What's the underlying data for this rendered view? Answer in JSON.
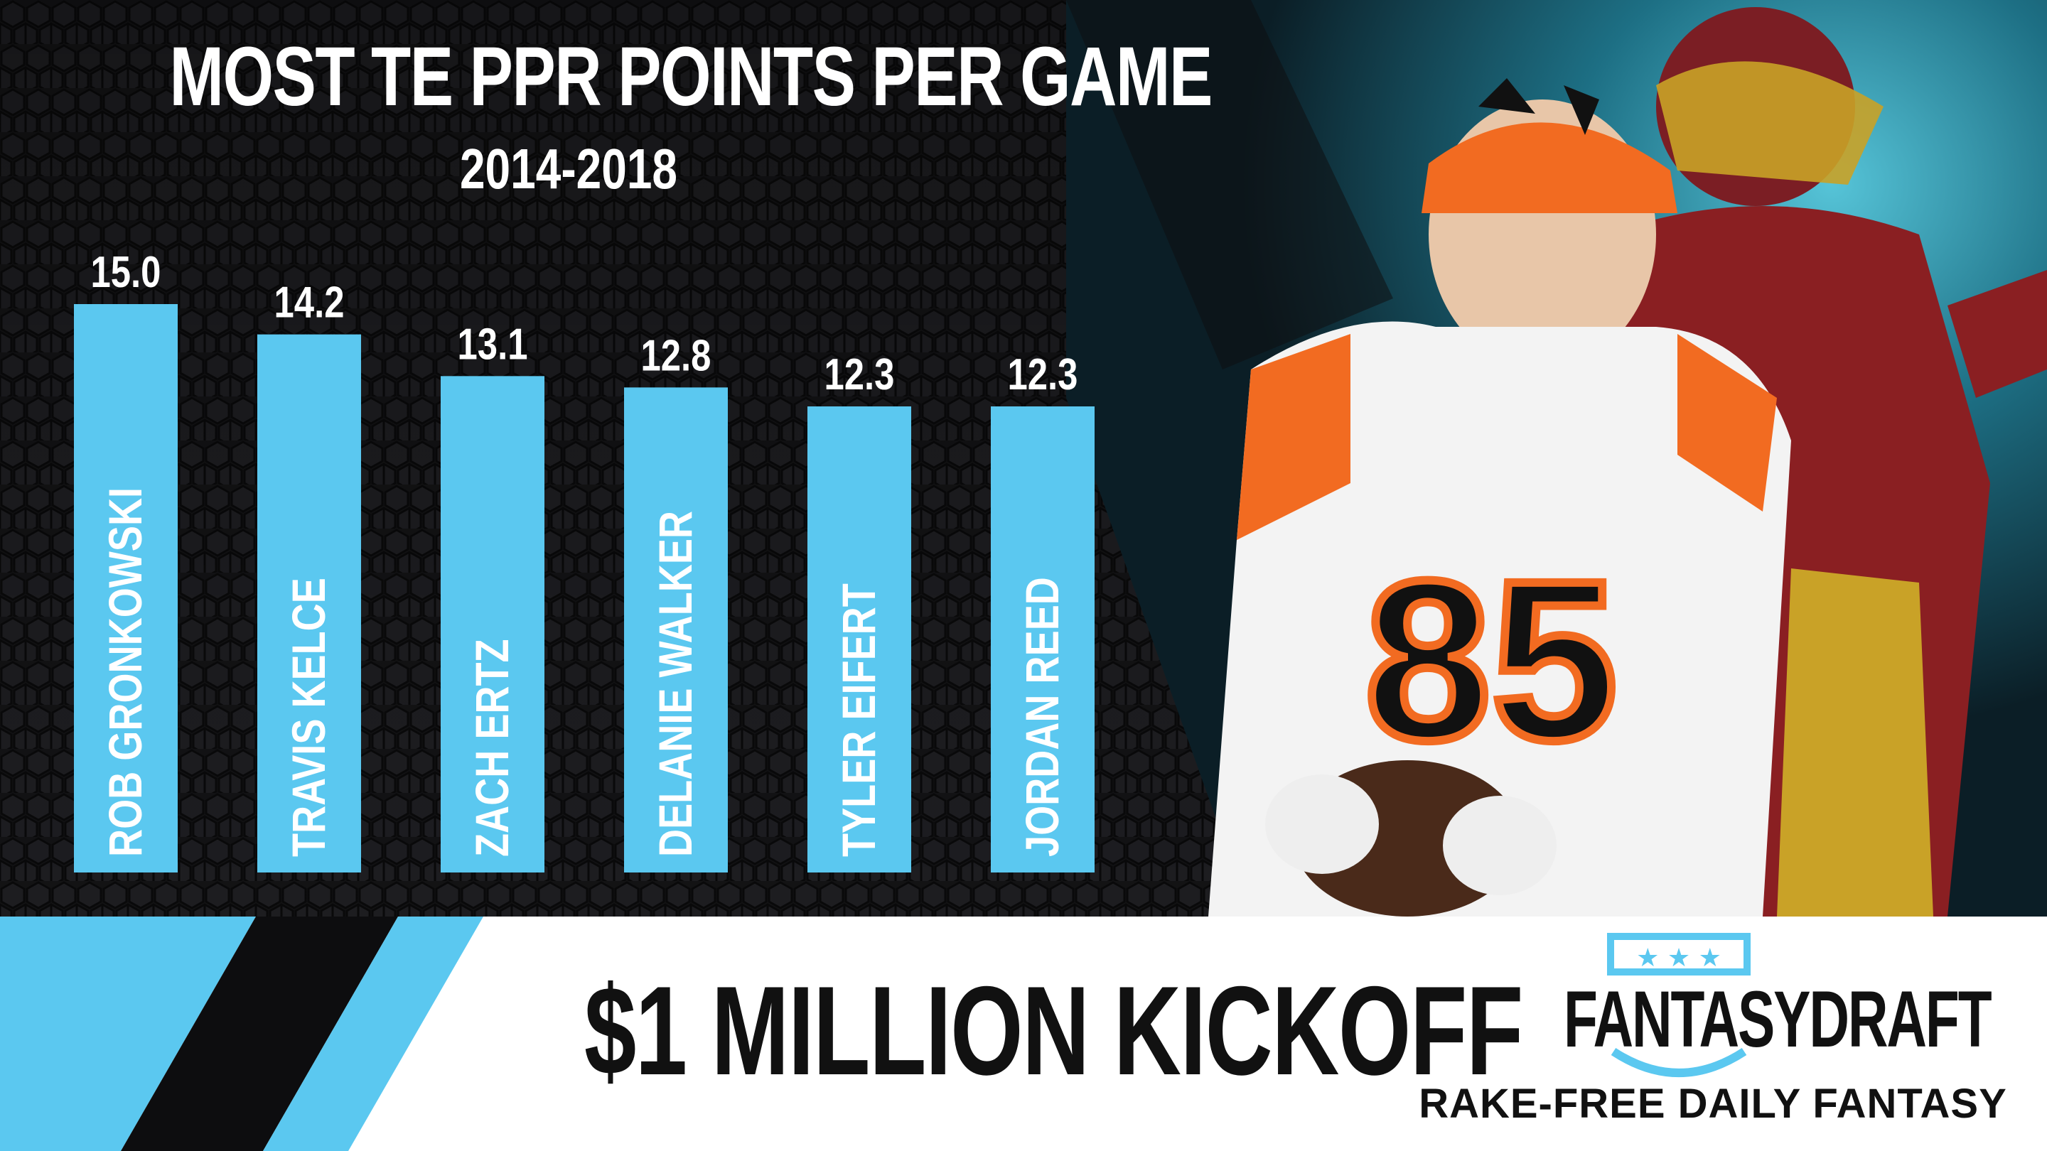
{
  "title": "MOST TE PPR POINTS PER GAME",
  "subtitle": "2014-2018",
  "promo": "$1 MILLION KICKOFF",
  "brand": {
    "name": "FANTASYDRAFT",
    "tagline": "RAKE-FREE DAILY FANTASY"
  },
  "colors": {
    "bar": "#5bc8f0",
    "background": "#141416",
    "accent": "#5bc8f0",
    "bottom_panel": "#ffffff"
  },
  "chart_data": {
    "type": "bar",
    "title": "MOST TE PPR POINTS PER GAME",
    "subtitle": "2014-2018",
    "categories": [
      "ROB GRONKOWSKI",
      "TRAVIS KELCE",
      "ZACH ERTZ",
      "DELANIE WALKER",
      "TYLER EIFERT",
      "JORDAN REED"
    ],
    "values": [
      15.0,
      14.2,
      13.1,
      12.8,
      12.3,
      12.3
    ],
    "value_labels": [
      "15.0",
      "14.2",
      "13.1",
      "12.8",
      "12.3",
      "12.3"
    ],
    "xlabel": "",
    "ylabel": "",
    "grid": false,
    "legend": "none"
  }
}
